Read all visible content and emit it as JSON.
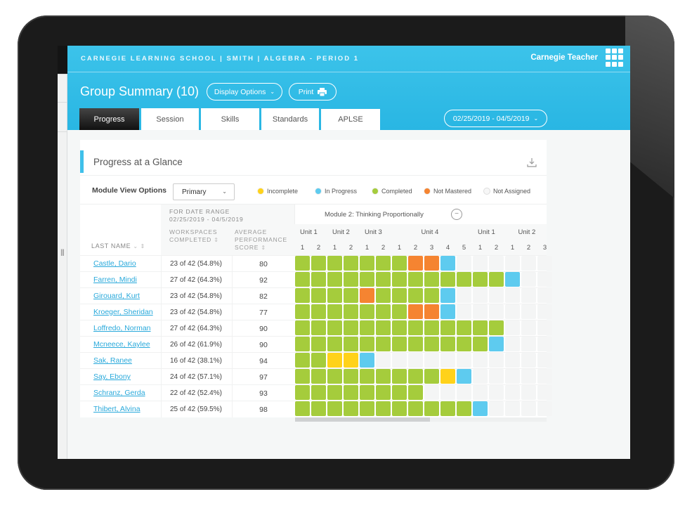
{
  "header": {
    "breadcrumb": "CARNEGIE LEARNING SCHOOL | SMITH | ALGEBRA - PERIOD 1",
    "brand": "Carnegie Teacher",
    "title": "Group Summary (10)",
    "display_options_label": "Display Options",
    "print_label": "Print",
    "date_range": "02/25/2019 - 04/5/2019",
    "tabs": [
      {
        "label": "Progress",
        "active": true
      },
      {
        "label": "Session",
        "active": false
      },
      {
        "label": "Skills",
        "active": false
      },
      {
        "label": "Standards",
        "active": false
      },
      {
        "label": "APLSE",
        "active": false
      }
    ]
  },
  "card": {
    "title": "Progress at a Glance",
    "module_view_label": "Module View Options",
    "module_view_value": "Primary",
    "legend": [
      {
        "label": "Incomplete",
        "color": "#ffd21a"
      },
      {
        "label": "In Progress",
        "color": "#5ecbef"
      },
      {
        "label": "Completed",
        "color": "#a5cc3c"
      },
      {
        "label": "Not Mastered",
        "color": "#f58431"
      },
      {
        "label": "Not Assigned",
        "color": "#f1f2f2"
      }
    ]
  },
  "table": {
    "col_last_name": "LAST NAME",
    "col_range_title": "FOR DATE RANGE",
    "col_range_value": "02/25/2019 - 04/5/2019",
    "col_workspaces": "WORKSPACES COMPLETED",
    "col_score": "AVERAGE PERFORMANCE SCORE",
    "module_title": "Module 2: Thinking Proportionally",
    "units": [
      {
        "label": "Unit 1",
        "lessons": [
          "1",
          "2"
        ]
      },
      {
        "label": "Unit 2",
        "lessons": [
          "1",
          "2"
        ]
      },
      {
        "label": "Unit 3",
        "lessons": [
          "1",
          "2"
        ]
      },
      {
        "label": "Unit 4",
        "lessons": [
          "1",
          "2",
          "3",
          "4",
          "5"
        ]
      },
      {
        "label": "Unit 1",
        "lessons": [
          "1",
          "2"
        ]
      },
      {
        "label": "Unit 2",
        "lessons": [
          "1",
          "2",
          "3"
        ]
      }
    ],
    "status_colors": {
      "C": "#a5cc3c",
      "O": "#f58431",
      "B": "#5ecbef",
      "Y": "#ffd21a",
      "E": "#f4f5f5"
    },
    "rows": [
      {
        "name": "Castle, Dario",
        "workspaces": "23 of 42 (54.8%)",
        "score": "80",
        "cells": "CCCCCCCOOBEEEEEE"
      },
      {
        "name": "Farren, Mindi",
        "workspaces": "27 of 42 (64.3%)",
        "score": "92",
        "cells": "CCCCCCCCCCCCCBEE"
      },
      {
        "name": "Girouard, Kurt",
        "workspaces": "23 of 42 (54.8%)",
        "score": "82",
        "cells": "CCCCOCCCCBEEEEEE"
      },
      {
        "name": "Kroeger, Sheridan",
        "workspaces": "23 of 42 (54.8%)",
        "score": "77",
        "cells": "CCCCCCCOOBEEEEEE"
      },
      {
        "name": "Loffredo, Norman",
        "workspaces": "27 of 42 (64.3%)",
        "score": "90",
        "cells": "CCCCCCCCCCCCCEEE"
      },
      {
        "name": "Mcneece, Kaylee",
        "workspaces": "26 of 42 (61.9%)",
        "score": "90",
        "cells": "CCCCCCCCCCCCBEEE"
      },
      {
        "name": "Sak, Ranee",
        "workspaces": "16 of 42 (38.1%)",
        "score": "94",
        "cells": "CCYYBEEEEEEEEEEE"
      },
      {
        "name": "Say, Ebony",
        "workspaces": "24 of 42 (57.1%)",
        "score": "97",
        "cells": "CCCCCCCCCYBEEEEE"
      },
      {
        "name": "Schranz, Gerda",
        "workspaces": "22 of 42 (52.4%)",
        "score": "93",
        "cells": "CCCCCCCCEEEEEEEE"
      },
      {
        "name": "Thibert, Alvina",
        "workspaces": "25 of 42 (59.5%)",
        "score": "98",
        "cells": "CCCCCCCCCCCBEEEE"
      }
    ]
  }
}
